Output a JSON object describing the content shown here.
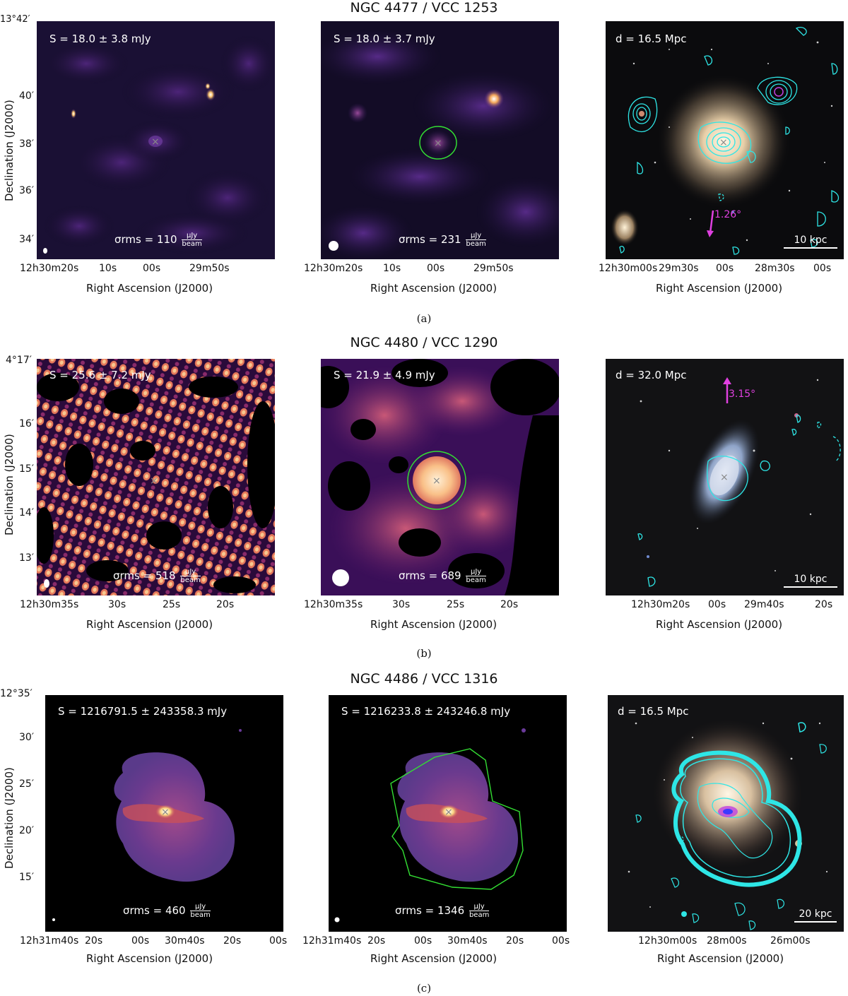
{
  "rows": [
    {
      "title": "NGC 4477 / VCC 1253",
      "caption": "(a)",
      "ylabel": "Declination (J2000)",
      "xlabel": "Right Ascension (J2000)",
      "yticks": [
        "13°42′",
        "40′",
        "38′",
        "36′",
        "34′"
      ],
      "panel1": {
        "flux": "S = 18.0 ± 3.8 mJy",
        "rms_value": "110",
        "xticks": [
          "12h30m20s",
          "10s",
          "00s",
          "29m50s"
        ]
      },
      "panel2": {
        "flux": "S = 18.0 ± 3.7 mJy",
        "rms_value": "231",
        "xticks": [
          "12h30m20s",
          "10s",
          "00s",
          "29m50s"
        ]
      },
      "panel3": {
        "distance": "d = 16.5 Mpc",
        "scale": "10 kpc",
        "arrow": "1.26°",
        "xticks": [
          "12h30m00s",
          "29m30s",
          "00s",
          "28m30s",
          "00s"
        ]
      }
    },
    {
      "title": "NGC 4480 / VCC 1290",
      "caption": "(b)",
      "ylabel": "Declination (J2000)",
      "xlabel": "Right Ascension (J2000)",
      "yticks": [
        "4°17′",
        "16′",
        "15′",
        "14′",
        "13′"
      ],
      "panel1": {
        "flux": "S = 25.6 ± 7.2 mJy",
        "rms_value": "518",
        "xticks": [
          "12h30m35s",
          "30s",
          "25s",
          "20s"
        ]
      },
      "panel2": {
        "flux": "S = 21.9 ± 4.9 mJy",
        "rms_value": "689",
        "xticks": [
          "12h30m35s",
          "30s",
          "25s",
          "20s"
        ]
      },
      "panel3": {
        "distance": "d = 32.0 Mpc",
        "scale": "10 kpc",
        "arrow": "3.15°",
        "xticks": [
          "12h30m20s",
          "00s",
          "29m40s",
          "20s"
        ]
      }
    },
    {
      "title": "NGC 4486 / VCC 1316",
      "caption": "(c)",
      "ylabel": "Declination (J2000)",
      "xlabel": "Right Ascension (J2000)",
      "yticks": [
        "12°35′",
        "30′",
        "25′",
        "20′",
        "15′"
      ],
      "panel1": {
        "flux": "S = 1216791.5 ± 243358.3 mJy",
        "rms_value": "460",
        "xticks": [
          "12h31m40s",
          "20s",
          "00s",
          "30m40s",
          "20s",
          "00s"
        ]
      },
      "panel2": {
        "flux": "S = 1216233.8 ± 243246.8 mJy",
        "rms_value": "1346",
        "xticks": [
          "12h31m40s",
          "20s",
          "00s",
          "30m40s",
          "20s",
          "00s"
        ]
      },
      "panel3": {
        "distance": "d = 16.5 Mpc",
        "scale": "20 kpc",
        "arrow": "",
        "xticks": [
          "12h30m00s",
          "28m00s",
          "26m00s"
        ]
      }
    }
  ],
  "rms_label": "σrms =",
  "rms_unit_num": "μJy",
  "rms_unit_den": "beam",
  "colors": {
    "contour": "#2ee6e6",
    "aperture": "#33dd33",
    "arrow": "#e040e0",
    "marker": "#888888"
  }
}
